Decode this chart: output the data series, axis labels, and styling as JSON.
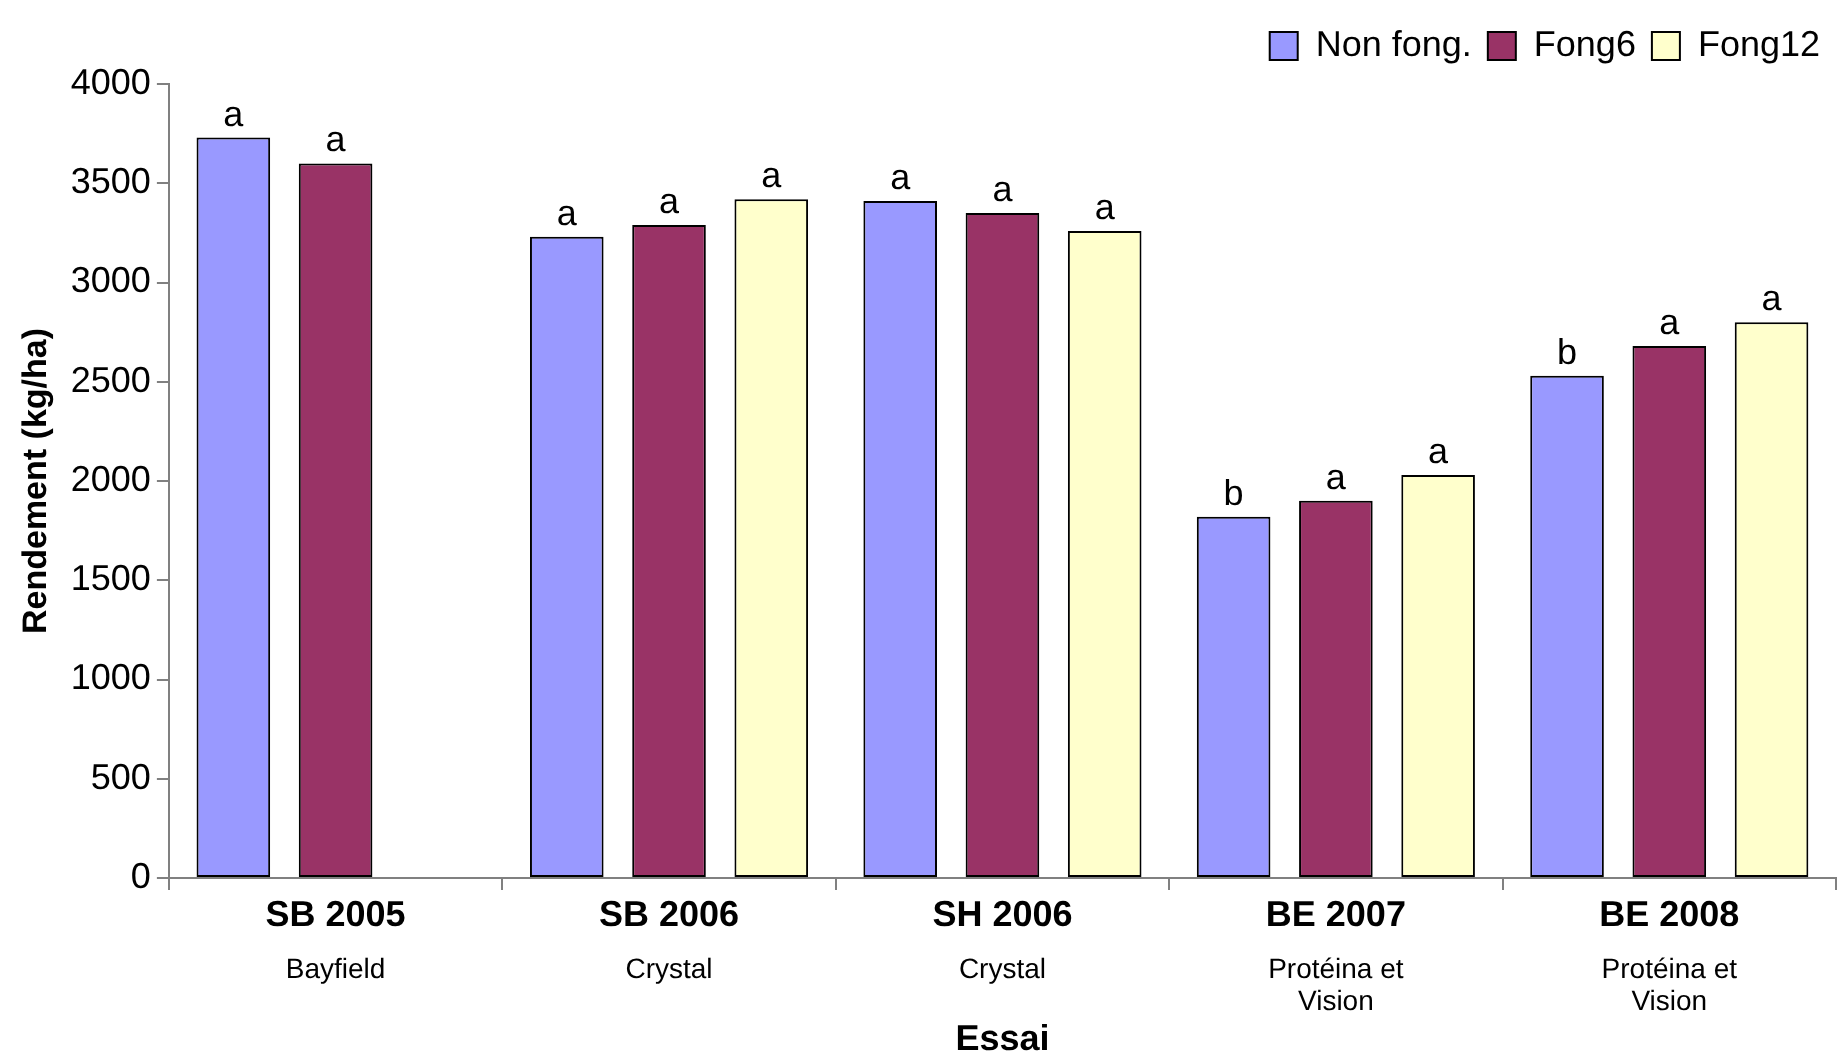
{
  "chart_data": {
    "type": "bar",
    "xlabel": "Essai",
    "ylabel": "Rendement (kg/ha)",
    "categories": [
      "SB 2005\nBayfield",
      "SB 2006\nCrystal",
      "SH 2006\nCrystal",
      "BE 2007\nProtéina et\nVision",
      "BE 2008\nProtéina et\nVision"
    ],
    "series": [
      {
        "name": "Non fong.",
        "color": "#9999ff",
        "values": [
          3730,
          3230,
          3410,
          1820,
          2530
        ],
        "value_labels": [
          "a",
          "a",
          "a",
          "b",
          "b"
        ]
      },
      {
        "name": "Fong6",
        "color": "#993366",
        "values": [
          3600,
          3290,
          3350,
          1900,
          2680
        ],
        "value_labels": [
          "a",
          "a",
          "a",
          "a",
          "a"
        ]
      },
      {
        "name": "Fong12",
        "color": "#ffffcc",
        "values": [
          null,
          3420,
          3260,
          2030,
          2800
        ],
        "value_labels": [
          null,
          "a",
          "a",
          "a",
          "a"
        ]
      }
    ],
    "ylim": [
      0,
      4000
    ],
    "yticks": [
      0,
      500,
      1000,
      1500,
      2000,
      2500,
      3000,
      3500,
      4000
    ],
    "grid": false,
    "legend": "top right"
  }
}
